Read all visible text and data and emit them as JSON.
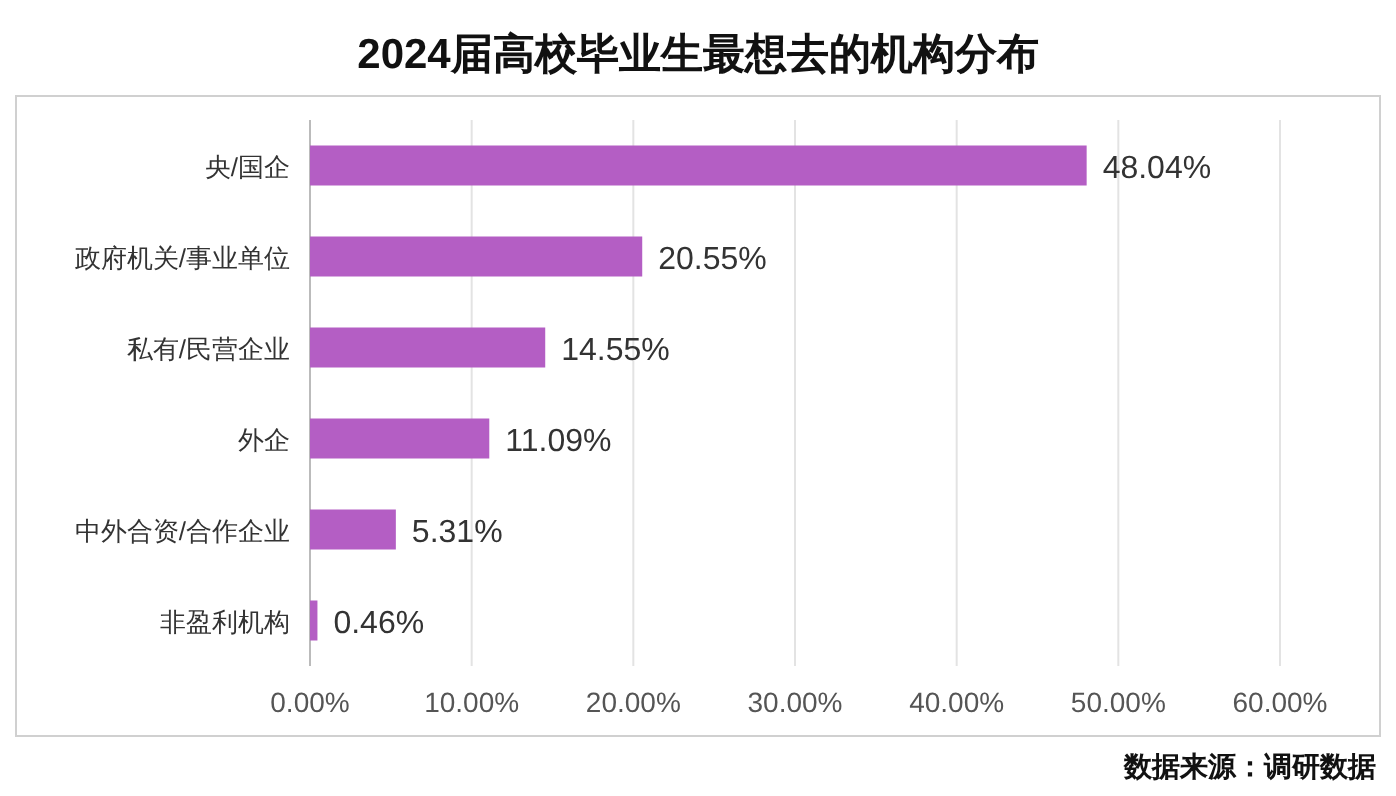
{
  "chart_data": {
    "type": "bar",
    "orientation": "horizontal",
    "title": "2024届高校毕业生最想去的机构分布",
    "categories": [
      "央/国企",
      "政府机关/事业单位",
      "私有/民营企业",
      "外企",
      "中外合资/合作企业",
      "非盈利机构"
    ],
    "values": [
      48.04,
      20.55,
      14.55,
      11.09,
      5.31,
      0.46
    ],
    "value_labels": [
      "48.04%",
      "20.55%",
      "14.55%",
      "11.09%",
      "5.31%",
      "0.46%"
    ],
    "color": "#b45ec4",
    "xlim": [
      0,
      60
    ],
    "xticks": [
      {
        "value": 0,
        "label": "0.00%"
      },
      {
        "value": 10,
        "label": "10.00%"
      },
      {
        "value": 20,
        "label": "20.00%"
      },
      {
        "value": 30,
        "label": "30.00%"
      },
      {
        "value": 40,
        "label": "40.00%"
      },
      {
        "value": 50,
        "label": "50.00%"
      },
      {
        "value": 60,
        "label": "60.00%"
      }
    ],
    "grid": "x",
    "annotations": [
      "数据来源：调研数据"
    ]
  }
}
